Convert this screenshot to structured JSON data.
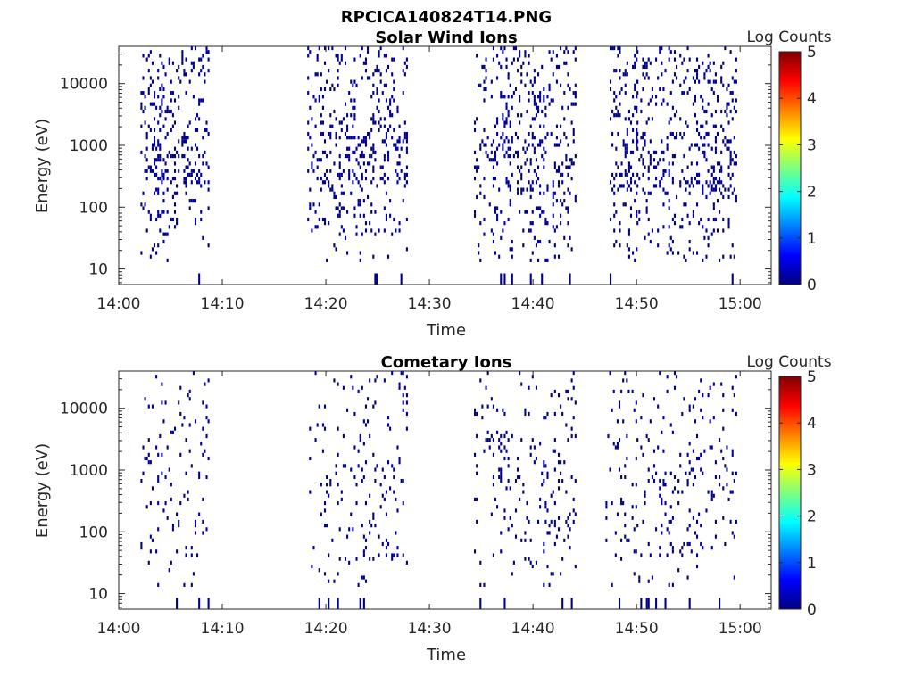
{
  "figure_title": "RPCICA140824T14.PNG",
  "colors": {
    "background": "#ffffff",
    "axis": "#262626",
    "data_mark": "#00008f",
    "colormap": [
      "#00007f",
      "#0000ff",
      "#007fff",
      "#00ffff",
      "#7fff7f",
      "#ffff00",
      "#ff7f00",
      "#ff0000",
      "#7f0000"
    ]
  },
  "chart_data": [
    {
      "type": "heatmap",
      "title": "Solar Wind Ions",
      "xlabel": "Time",
      "ylabel": "Energy (eV)",
      "x_ticks": [
        "14:00",
        "14:10",
        "14:20",
        "14:30",
        "14:40",
        "14:50",
        "15:00"
      ],
      "x_tick_minutes": [
        0,
        10,
        20,
        30,
        40,
        50,
        60
      ],
      "xlim_minutes": [
        0,
        63.0
      ],
      "y_scale": "log",
      "y_ticks": [
        "10",
        "100",
        "1000",
        "10000"
      ],
      "y_tick_values": [
        10,
        100,
        1000,
        10000
      ],
      "ylim": [
        5.6,
        40000
      ],
      "grid": false,
      "colorbar": {
        "label": "Log Counts",
        "range": [
          0,
          5
        ],
        "ticks": [
          "0",
          "1",
          "2",
          "3",
          "4",
          "5"
        ],
        "colormap": "jet"
      },
      "bursts_minutes": [
        [
          2.1,
          8.6
        ],
        [
          18.2,
          27.8
        ],
        [
          34.3,
          44.1
        ],
        [
          47.4,
          50.0
        ],
        [
          50.0,
          59.6
        ]
      ],
      "data_note_log_counts_range": [
        0,
        1
      ]
    },
    {
      "type": "heatmap",
      "title": "Cometary Ions",
      "xlabel": "Time",
      "ylabel": "Energy (eV)",
      "x_ticks": [
        "14:00",
        "14:10",
        "14:20",
        "14:30",
        "14:40",
        "14:50",
        "15:00"
      ],
      "x_tick_minutes": [
        0,
        10,
        20,
        30,
        40,
        50,
        60
      ],
      "xlim_minutes": [
        0,
        63.0
      ],
      "y_scale": "log",
      "y_ticks": [
        "10",
        "100",
        "1000",
        "10000"
      ],
      "y_tick_values": [
        10,
        100,
        1000,
        10000
      ],
      "ylim": [
        5.6,
        40000
      ],
      "grid": false,
      "colorbar": {
        "label": "Log Counts",
        "range": [
          0,
          5
        ],
        "ticks": [
          "0",
          "1",
          "2",
          "3",
          "4",
          "5"
        ],
        "colormap": "jet"
      },
      "bursts_minutes": [
        [
          2.1,
          8.6
        ],
        [
          18.2,
          27.8
        ],
        [
          34.3,
          44.1
        ],
        [
          47.0,
          50.0
        ],
        [
          50.0,
          59.6
        ]
      ],
      "data_note_log_counts_range": [
        0,
        1
      ]
    }
  ]
}
